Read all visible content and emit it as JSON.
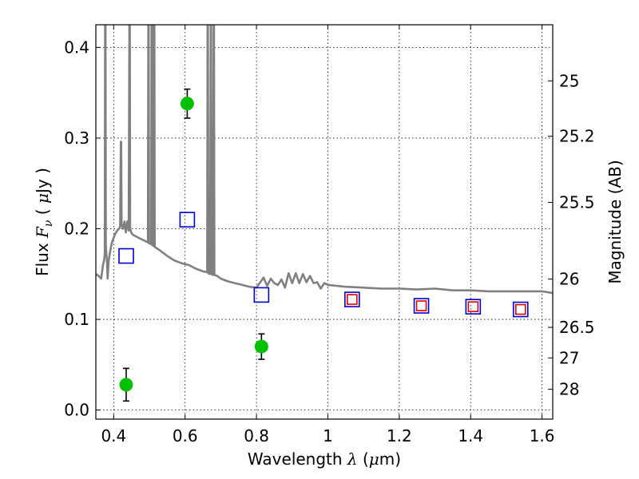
{
  "chart_data": {
    "type": "scatter",
    "xlabel": {
      "prefix": "Wavelength  ",
      "symbol": "λ",
      "unit_open": " (",
      "unit_mu": "μ",
      "unit_rest": "m)"
    },
    "ylabel": {
      "prefix": "Flux  ",
      "symbol": "F",
      "subscript": "ν",
      "unit_open": "  ( ",
      "unit_mu": "μ",
      "unit_rest": "Jy )"
    },
    "y2label": "Magnitude (AB)",
    "xlim": [
      0.35,
      1.63
    ],
    "ylim": [
      -0.01,
      0.425
    ],
    "xticks": [
      {
        "v": 0.4,
        "label": "0.4"
      },
      {
        "v": 0.6,
        "label": "0.6"
      },
      {
        "v": 0.8,
        "label": "0.8"
      },
      {
        "v": 1.0,
        "label": "1"
      },
      {
        "v": 1.2,
        "label": "1.2"
      },
      {
        "v": 1.4,
        "label": "1.4"
      },
      {
        "v": 1.6,
        "label": "1.6"
      }
    ],
    "yticks": [
      {
        "v": 0.0,
        "label": "0.0"
      },
      {
        "v": 0.1,
        "label": "0.1"
      },
      {
        "v": 0.2,
        "label": "0.2"
      },
      {
        "v": 0.3,
        "label": "0.3"
      },
      {
        "v": 0.4,
        "label": "0.4"
      }
    ],
    "mag_ticks": [
      {
        "mag": 25,
        "label": "25"
      },
      {
        "mag": 25.2,
        "label": "25.2"
      },
      {
        "mag": 25.5,
        "label": "25.5"
      },
      {
        "mag": 26,
        "label": "26"
      },
      {
        "mag": 26.5,
        "label": "26.5"
      },
      {
        "mag": 27,
        "label": "27"
      },
      {
        "mag": 28,
        "label": "28"
      }
    ],
    "grid": true,
    "series": [
      {
        "kind": "observed_detections",
        "marker": "filled-circle",
        "color": "#00c000",
        "points": [
          {
            "x": 0.435,
            "y": 0.028,
            "yerr": 0.018
          },
          {
            "x": 0.606,
            "y": 0.338,
            "yerr": 0.016
          },
          {
            "x": 0.814,
            "y": 0.07,
            "yerr": 0.014
          }
        ]
      },
      {
        "kind": "model_photometry",
        "marker": "open-square",
        "color": "#0000cc",
        "points": [
          {
            "x": 0.435,
            "y": 0.17
          },
          {
            "x": 0.606,
            "y": 0.21
          },
          {
            "x": 0.814,
            "y": 0.127
          },
          {
            "x": 1.068,
            "y": 0.122
          },
          {
            "x": 1.262,
            "y": 0.115
          },
          {
            "x": 1.407,
            "y": 0.114
          },
          {
            "x": 1.54,
            "y": 0.111
          }
        ]
      },
      {
        "kind": "model_photometry_small",
        "marker": "open-square",
        "color": "#dd0000",
        "points": [
          {
            "x": 1.068,
            "y": 0.122
          },
          {
            "x": 1.262,
            "y": 0.115
          },
          {
            "x": 1.407,
            "y": 0.114
          },
          {
            "x": 1.54,
            "y": 0.111
          }
        ]
      },
      {
        "kind": "model_spectrum",
        "line": true,
        "color": "#808080",
        "points": [
          [
            0.35,
            0.15
          ],
          [
            0.358,
            0.148
          ],
          [
            0.365,
            0.145
          ],
          [
            0.37,
            0.16
          ],
          [
            0.373,
            0.165
          ],
          [
            0.375,
            0.172
          ],
          [
            0.376,
            0.425
          ],
          [
            0.377,
            0.425
          ],
          [
            0.378,
            0.18
          ],
          [
            0.381,
            0.165
          ],
          [
            0.383,
            0.145
          ],
          [
            0.386,
            0.165
          ],
          [
            0.39,
            0.175
          ],
          [
            0.395,
            0.185
          ],
          [
            0.4,
            0.19
          ],
          [
            0.405,
            0.195
          ],
          [
            0.41,
            0.198
          ],
          [
            0.415,
            0.2
          ],
          [
            0.418,
            0.202
          ],
          [
            0.42,
            0.296
          ],
          [
            0.421,
            0.296
          ],
          [
            0.422,
            0.205
          ],
          [
            0.426,
            0.2
          ],
          [
            0.43,
            0.208
          ],
          [
            0.434,
            0.196
          ],
          [
            0.438,
            0.208
          ],
          [
            0.442,
            0.198
          ],
          [
            0.444,
            0.425
          ],
          [
            0.445,
            0.425
          ],
          [
            0.446,
            0.2
          ],
          [
            0.45,
            0.195
          ],
          [
            0.455,
            0.193
          ],
          [
            0.46,
            0.192
          ],
          [
            0.47,
            0.19
          ],
          [
            0.48,
            0.188
          ],
          [
            0.49,
            0.186
          ],
          [
            0.496,
            0.185
          ],
          [
            0.497,
            0.425
          ],
          [
            0.498,
            0.425
          ],
          [
            0.499,
            0.184
          ],
          [
            0.505,
            0.183
          ],
          [
            0.506,
            0.425
          ],
          [
            0.507,
            0.425
          ],
          [
            0.508,
            0.182
          ],
          [
            0.512,
            0.181
          ],
          [
            0.513,
            0.425
          ],
          [
            0.514,
            0.425
          ],
          [
            0.515,
            0.18
          ],
          [
            0.53,
            0.176
          ],
          [
            0.55,
            0.17
          ],
          [
            0.57,
            0.165
          ],
          [
            0.59,
            0.162
          ],
          [
            0.61,
            0.16
          ],
          [
            0.63,
            0.156
          ],
          [
            0.65,
            0.153
          ],
          [
            0.662,
            0.152
          ],
          [
            0.663,
            0.425
          ],
          [
            0.664,
            0.425
          ],
          [
            0.665,
            0.151
          ],
          [
            0.67,
            0.15
          ],
          [
            0.672,
            0.425
          ],
          [
            0.673,
            0.425
          ],
          [
            0.674,
            0.15
          ],
          [
            0.678,
            0.149
          ],
          [
            0.68,
            0.425
          ],
          [
            0.681,
            0.425
          ],
          [
            0.682,
            0.149
          ],
          [
            0.69,
            0.148
          ],
          [
            0.7,
            0.145
          ],
          [
            0.72,
            0.142
          ],
          [
            0.74,
            0.14
          ],
          [
            0.76,
            0.138
          ],
          [
            0.78,
            0.136
          ],
          [
            0.8,
            0.135
          ],
          [
            0.82,
            0.146
          ],
          [
            0.83,
            0.137
          ],
          [
            0.84,
            0.145
          ],
          [
            0.85,
            0.14
          ],
          [
            0.86,
            0.138
          ],
          [
            0.87,
            0.144
          ],
          [
            0.88,
            0.135
          ],
          [
            0.89,
            0.151
          ],
          [
            0.9,
            0.14
          ],
          [
            0.91,
            0.151
          ],
          [
            0.92,
            0.14
          ],
          [
            0.93,
            0.15
          ],
          [
            0.94,
            0.141
          ],
          [
            0.95,
            0.148
          ],
          [
            0.96,
            0.14
          ],
          [
            0.97,
            0.141
          ],
          [
            0.98,
            0.134
          ],
          [
            0.99,
            0.14
          ],
          [
            1.0,
            0.138
          ],
          [
            1.05,
            0.136
          ],
          [
            1.1,
            0.135
          ],
          [
            1.15,
            0.134
          ],
          [
            1.2,
            0.134
          ],
          [
            1.25,
            0.133
          ],
          [
            1.3,
            0.134
          ],
          [
            1.35,
            0.132
          ],
          [
            1.4,
            0.132
          ],
          [
            1.45,
            0.131
          ],
          [
            1.5,
            0.131
          ],
          [
            1.55,
            0.131
          ],
          [
            1.6,
            0.131
          ],
          [
            1.63,
            0.129
          ]
        ]
      }
    ]
  }
}
